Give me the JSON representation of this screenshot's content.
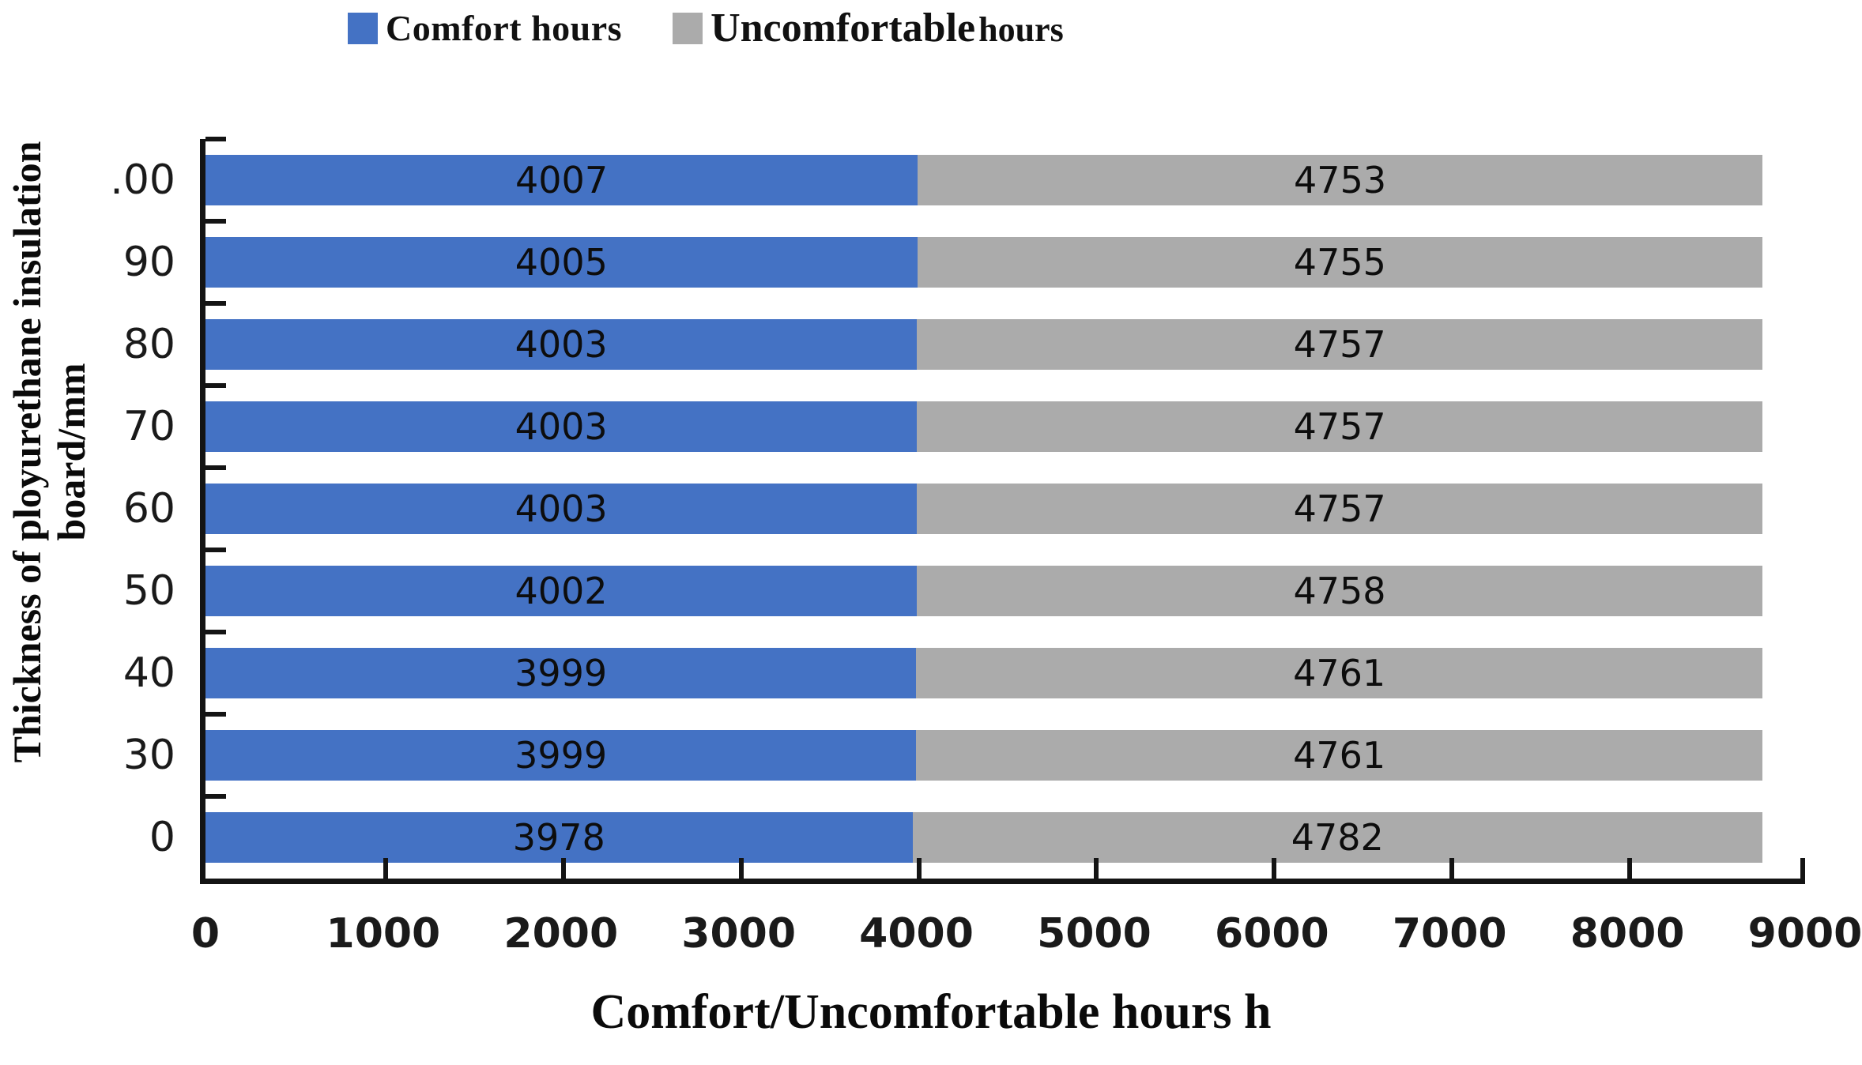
{
  "legend": {
    "items": [
      {
        "label": "Comfort hours",
        "color": "#4472C4"
      },
      {
        "label_main": "Uncomfortable",
        "label_suffix": "hours",
        "color": "#ABABAB"
      }
    ]
  },
  "axes": {
    "x_title": "Comfort/Uncomfortable hours h",
    "y_title_line1": "Thickness of ployurethane insulation",
    "y_title_line2": "board/mm",
    "x_tick_labels": [
      "0",
      "1000",
      "2000",
      "3000",
      "4000",
      "5000",
      "6000",
      "7000",
      "8000",
      "9000"
    ]
  },
  "chart_data": {
    "type": "bar",
    "orientation": "horizontal",
    "stacked": true,
    "title": "",
    "xlabel": "Comfort/Uncomfortable hours h",
    "ylabel": "Thickness of ployurethane insulation board/mm",
    "xlim": [
      0,
      9000
    ],
    "x_tick_step": 1000,
    "grid": false,
    "legend_position": "top",
    "categories_top_to_bottom": [
      ".00",
      "90",
      "80",
      "70",
      "60",
      "50",
      "40",
      "30",
      "0"
    ],
    "series": [
      {
        "name": "Comfort hours",
        "color": "#4472C4",
        "values": [
          4007,
          4005,
          4003,
          4003,
          4003,
          4002,
          3999,
          3999,
          3978
        ]
      },
      {
        "name": "Uncomfortable hours",
        "color": "#ABABAB",
        "values": [
          4753,
          4755,
          4757,
          4757,
          4757,
          4758,
          4761,
          4761,
          4782
        ]
      }
    ]
  }
}
